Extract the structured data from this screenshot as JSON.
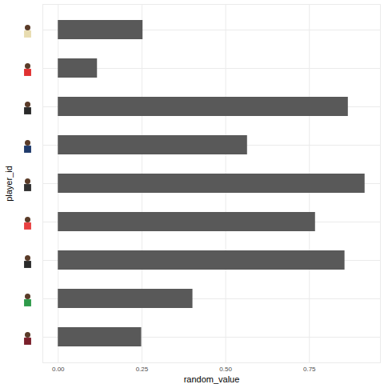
{
  "chart_data": {
    "type": "bar",
    "orientation": "horizontal",
    "categories": [
      null,
      null,
      null,
      null,
      null,
      null,
      null,
      null,
      null
    ],
    "values": [
      0.253,
      0.117,
      0.866,
      0.565,
      0.916,
      0.768,
      0.856,
      0.402,
      0.249
    ],
    "color": "#595959",
    "xlabel": "random_value",
    "ylabel": "player_id",
    "xlim": [
      -0.046,
      0.962
    ],
    "xticks": [
      {
        "value": 0,
        "label": "0.00"
      },
      {
        "value": 0.25,
        "label": "0.25"
      },
      {
        "value": 0.5,
        "label": "0.50"
      },
      {
        "value": 0.75,
        "label": "0.75"
      }
    ],
    "grid": true
  }
}
